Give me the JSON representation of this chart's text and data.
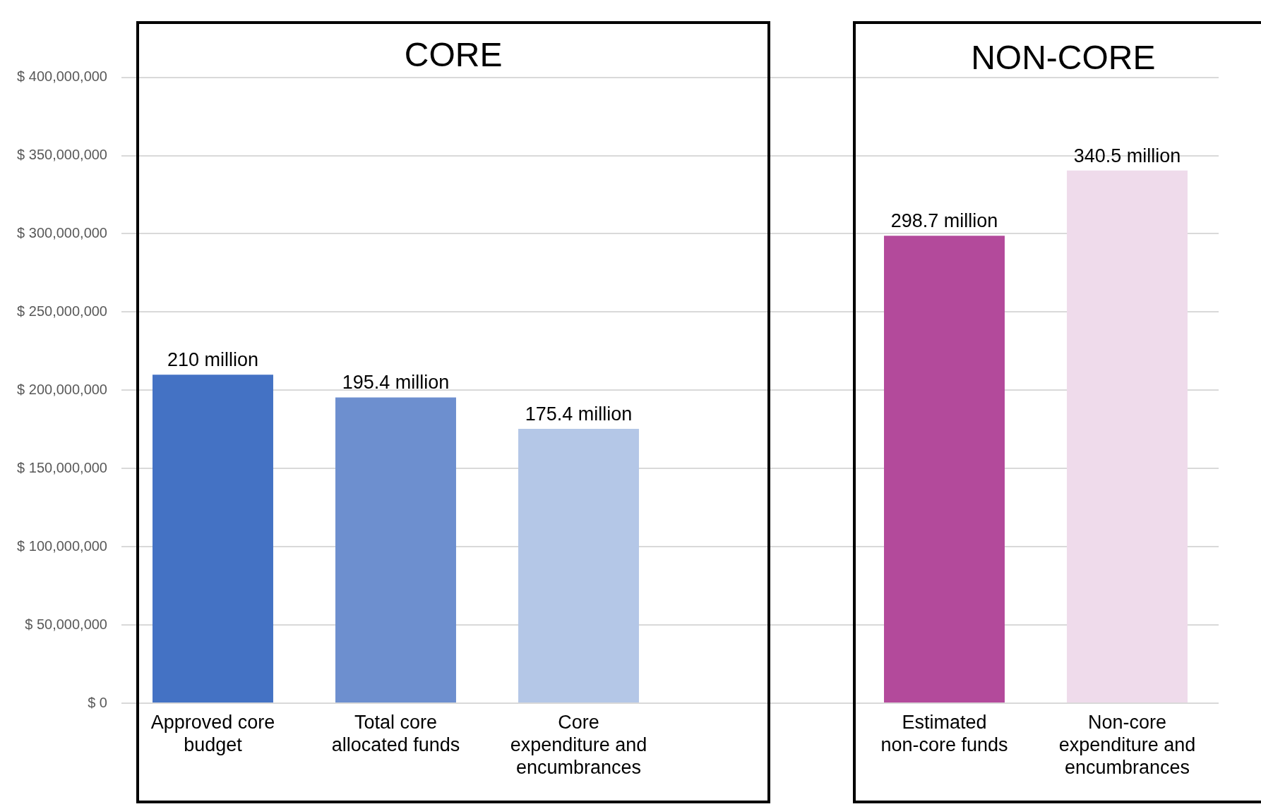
{
  "chart_data": {
    "type": "bar",
    "categories": [
      "Approved core budget",
      "Total core allocated funds",
      "Core expenditure and encumbrances",
      null,
      "Estimated non-core funds",
      "Non-core expenditure and encumbrances"
    ],
    "values": [
      210000000,
      195400000,
      175400000,
      null,
      298700000,
      340500000
    ],
    "colors": [
      "#4472c4",
      "#6d8fcf",
      "#b4c7e7",
      "#ffffff",
      "#b34a9b",
      "#efdbeb"
    ],
    "value_labels": [
      "210 million",
      "195.4 million",
      "175.4 million",
      null,
      "298.7 million",
      "340.5 million"
    ],
    "ylim": [
      0,
      435000000
    ],
    "yticks": [
      {
        "value": 0,
        "label": "$ 0"
      },
      {
        "value": 50000000,
        "label": "$ 50,000,000"
      },
      {
        "value": 100000000,
        "label": "$ 100,000,000"
      },
      {
        "value": 150000000,
        "label": "$ 150,000,000"
      },
      {
        "value": 200000000,
        "label": "$ 200,000,000"
      },
      {
        "value": 250000000,
        "label": "$ 250,000,000"
      },
      {
        "value": 300000000,
        "label": "$ 300,000,000"
      },
      {
        "value": 350000000,
        "label": "$ 350,000,000"
      },
      {
        "value": 400000000,
        "label": "$ 400,000,000"
      }
    ],
    "annotations": [
      "CORE",
      "NON-CORE"
    ],
    "grid": "y"
  }
}
